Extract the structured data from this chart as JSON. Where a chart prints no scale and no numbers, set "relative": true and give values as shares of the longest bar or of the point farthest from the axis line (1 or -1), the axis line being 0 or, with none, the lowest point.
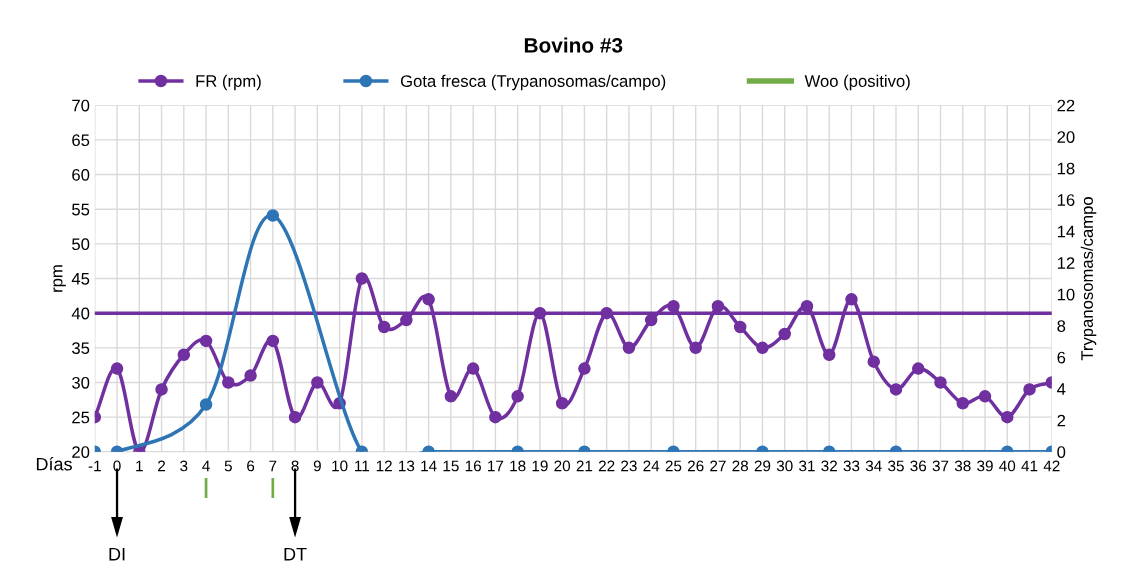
{
  "chart_data": [
    {
      "type": "line",
      "title": "Bovino #3",
      "xlabel": "Días",
      "ylabel": "rpm",
      "y2label": "Trypanosomas/campo",
      "categories": [
        "-1",
        "0",
        "1",
        "2",
        "3",
        "4",
        "5",
        "6",
        "7",
        "8",
        "9",
        "10",
        "11",
        "12",
        "13",
        "14",
        "15",
        "16",
        "17",
        "18",
        "19",
        "20",
        "21",
        "22",
        "23",
        "24",
        "25",
        "26",
        "27",
        "28",
        "29",
        "30",
        "31",
        "32",
        "33",
        "34",
        "35",
        "36",
        "37",
        "38",
        "39",
        "40",
        "41",
        "42"
      ],
      "series": [
        {
          "name": "FR (rpm)",
          "color": "#7030a0",
          "type": "line",
          "values": [
            25,
            32,
            20,
            29,
            34,
            36,
            30,
            31,
            36,
            25,
            30,
            27,
            45,
            38,
            39,
            42,
            28,
            32,
            25,
            28,
            40,
            27,
            32,
            40,
            35,
            39,
            41,
            35,
            41,
            38,
            35,
            37,
            41,
            34,
            42,
            33,
            29,
            32,
            30,
            27,
            28,
            25,
            29,
            30
          ]
        },
        {
          "name": "Gota fresca (Trypanosomas/campo)",
          "color": "#2e75b6",
          "type": "line",
          "axis": "y2",
          "values": [
            0,
            0,
            null,
            null,
            null,
            3,
            null,
            null,
            15,
            null,
            null,
            null,
            0,
            null,
            null,
            0,
            null,
            null,
            null,
            0,
            null,
            null,
            0,
            null,
            null,
            null,
            0,
            null,
            null,
            null,
            0,
            null,
            null,
            0,
            null,
            null,
            0,
            null,
            null,
            null,
            null,
            0,
            null,
            0
          ]
        }
      ],
      "ylim": [
        20,
        70
      ],
      "yticks": [
        20,
        25,
        30,
        35,
        40,
        45,
        50,
        55,
        60,
        65,
        70
      ],
      "y2lim": [
        0,
        22
      ],
      "y2ticks": [
        0,
        2,
        4,
        6,
        8,
        10,
        12,
        14,
        16,
        18,
        20,
        22
      ],
      "ref_lines": [
        {
          "axis": "y",
          "value": 40,
          "color": "#7030a0"
        }
      ],
      "annotations": [
        "DI",
        "DT"
      ],
      "marker": "circle",
      "grid": true,
      "legend": "top"
    },
    {
      "type": "bar",
      "relative": true,
      "tick_labels": false,
      "categories": [
        "-1",
        "0",
        "1",
        "2",
        "3",
        "4",
        "5",
        "6",
        "7",
        "8",
        "9",
        "10",
        "11",
        "12",
        "13",
        "14",
        "15",
        "16",
        "17",
        "18",
        "19",
        "20",
        "21",
        "22",
        "23",
        "24",
        "25",
        "26",
        "27",
        "28",
        "29",
        "30",
        "31",
        "32",
        "33",
        "34",
        "35",
        "36",
        "37",
        "38",
        "39",
        "40",
        "41",
        "42"
      ],
      "series": [
        {
          "name": "Woo (positivo)",
          "color": "#70ad47",
          "values": [
            null,
            null,
            null,
            null,
            null,
            1,
            null,
            null,
            1,
            null,
            null,
            null,
            null,
            null,
            null,
            null,
            null,
            null,
            null,
            null,
            null,
            null,
            null,
            null,
            null,
            null,
            null,
            null,
            null,
            null,
            null,
            null,
            null,
            null,
            null,
            null,
            null,
            null,
            null,
            null,
            null,
            null,
            null,
            null
          ]
        }
      ]
    }
  ]
}
